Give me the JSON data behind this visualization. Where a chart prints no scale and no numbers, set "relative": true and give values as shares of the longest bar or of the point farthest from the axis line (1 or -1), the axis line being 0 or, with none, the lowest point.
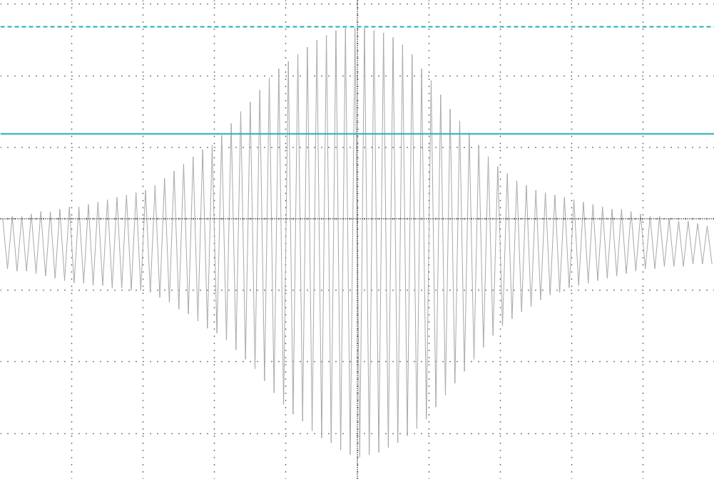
{
  "chart_data": {
    "type": "line",
    "relative": true,
    "grid": true,
    "categories": [
      null,
      null,
      null,
      null,
      null,
      null,
      null,
      null,
      null,
      null,
      null,
      null,
      null,
      null,
      null,
      null,
      null,
      null,
      null,
      null,
      null,
      null,
      null,
      null,
      null,
      null,
      null,
      null,
      null,
      null,
      null,
      null,
      null,
      null,
      null,
      null,
      null,
      null,
      null,
      null,
      null,
      null,
      null,
      null,
      null,
      null,
      null,
      null,
      null,
      null,
      null,
      null,
      null,
      null,
      null,
      null,
      null,
      null,
      null,
      null,
      null,
      null,
      null,
      null,
      null,
      null,
      null,
      null,
      null,
      null,
      null,
      null,
      null,
      null,
      null,
      null,
      null,
      null,
      null,
      null,
      null,
      null,
      null,
      null,
      null,
      null,
      null,
      null,
      null,
      null,
      null,
      null,
      null,
      null,
      null,
      null,
      null,
      null,
      null,
      null,
      null,
      null,
      null,
      null,
      null,
      null,
      null,
      null,
      null,
      null,
      null,
      null,
      null,
      null,
      null,
      null,
      null,
      null,
      null,
      null,
      null,
      null,
      null,
      null,
      null,
      null,
      null,
      null,
      null,
      null,
      null,
      null,
      null,
      null,
      null,
      null,
      null,
      null,
      null,
      null,
      null,
      null,
      null,
      null,
      null,
      null,
      null,
      null,
      null,
      null
    ],
    "series": [
      {
        "color": "#a8a8a8",
        "values": [
          0.0,
          -0.21,
          0.01,
          -0.22,
          0.01,
          -0.22,
          0.02,
          -0.23,
          0.03,
          -0.24,
          0.03,
          -0.25,
          0.04,
          -0.26,
          0.05,
          -0.27,
          0.05,
          -0.27,
          0.06,
          -0.28,
          0.07,
          -0.28,
          0.08,
          -0.29,
          0.09,
          -0.29,
          0.1,
          -0.3,
          0.11,
          -0.3,
          0.12,
          -0.31,
          0.14,
          -0.33,
          0.17,
          -0.35,
          0.2,
          -0.38,
          0.23,
          -0.4,
          0.26,
          -0.43,
          0.29,
          -0.46,
          0.31,
          -0.48,
          0.35,
          -0.51,
          0.4,
          -0.55,
          0.45,
          -0.59,
          0.49,
          -0.63,
          0.54,
          -0.68,
          0.59,
          -0.73,
          0.63,
          -0.78,
          0.66,
          -0.82,
          0.69,
          -0.85,
          0.72,
          -0.89,
          0.75,
          -0.92,
          0.77,
          -0.94,
          0.79,
          -0.97,
          0.8,
          -0.99,
          0.8,
          -1.0,
          0.8,
          -0.99,
          0.79,
          -0.98,
          0.78,
          -0.96,
          0.76,
          -0.94,
          0.73,
          -0.91,
          0.69,
          -0.88,
          0.63,
          -0.84,
          0.58,
          -0.79,
          0.52,
          -0.74,
          0.46,
          -0.69,
          0.41,
          -0.64,
          0.36,
          -0.59,
          0.31,
          -0.54,
          0.26,
          -0.49,
          0.22,
          -0.45,
          0.19,
          -0.42,
          0.16,
          -0.39,
          0.14,
          -0.37,
          0.12,
          -0.34,
          0.11,
          -0.32,
          0.1,
          -0.31,
          0.09,
          -0.29,
          0.08,
          -0.28,
          0.07,
          -0.27,
          0.06,
          -0.26,
          0.05,
          -0.25,
          0.04,
          -0.24,
          0.04,
          -0.23,
          0.03,
          -0.22,
          0.02,
          -0.21,
          0.01,
          -0.21,
          0.01,
          -0.2,
          0.0,
          -0.2,
          -0.01,
          -0.2,
          -0.01,
          -0.19,
          -0.02,
          -0.19,
          -0.03,
          -0.19
        ]
      }
    ],
    "ref_lines": [
      {
        "axis": "y",
        "value": 0.805,
        "color": "#20b2b2",
        "line_style": "dashed"
      },
      {
        "axis": "y",
        "value": 0.356,
        "color": "#20b2b2",
        "line_style": "solid"
      }
    ]
  }
}
